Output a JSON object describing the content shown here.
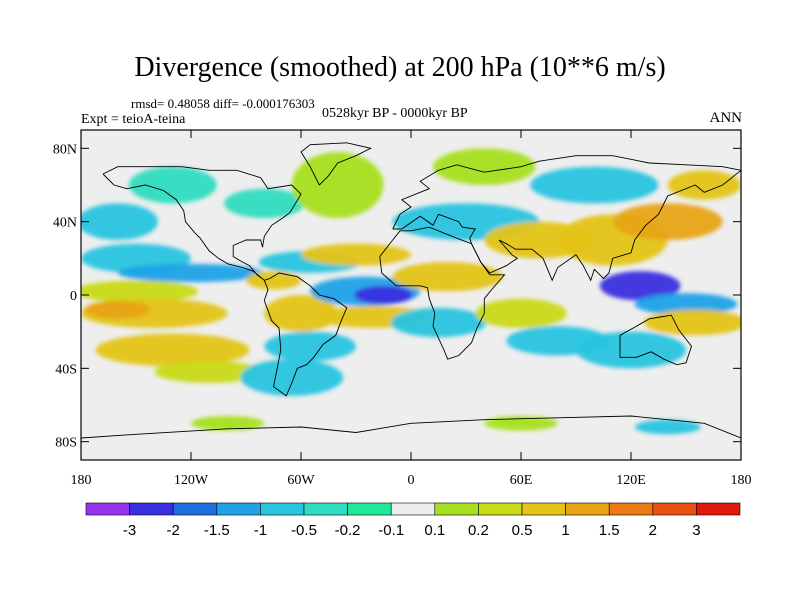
{
  "chart_data": {
    "type": "heatmap",
    "title": "Divergence (smoothed) at 200 hPa (10**6 m/s)",
    "stats_text": "rmsd= 0.48058 diff= -0.000176303",
    "expt_text": "Expt = teioA-teina",
    "period_text": "0528kyr BP - 0000kyr BP",
    "season_text": "ANN",
    "x_ticks": [
      {
        "value": -180,
        "label": "180"
      },
      {
        "value": -120,
        "label": "120W"
      },
      {
        "value": -60,
        "label": "60W"
      },
      {
        "value": 0,
        "label": "0"
      },
      {
        "value": 60,
        "label": "60E"
      },
      {
        "value": 120,
        "label": "120E"
      },
      {
        "value": 180,
        "label": "180"
      }
    ],
    "y_ticks": [
      {
        "value": 80,
        "label": "80N"
      },
      {
        "value": 40,
        "label": "40N"
      },
      {
        "value": 0,
        "label": "0"
      },
      {
        "value": -40,
        "label": "40S"
      },
      {
        "value": -80,
        "label": "80S"
      }
    ],
    "xlim": [
      -180,
      180
    ],
    "ylim": [
      -90,
      90
    ],
    "colorbar": {
      "colors": [
        "#9a33f0",
        "#3a2fe0",
        "#1c6fe0",
        "#1ea2e8",
        "#28c4e0",
        "#2fdcc0",
        "#20e898",
        "#eeeeee",
        "#a6e020",
        "#c8da18",
        "#e4c418",
        "#e8a414",
        "#ec7a10",
        "#e85010",
        "#e01808"
      ],
      "labels": [
        "-3",
        "-2",
        "-1.5",
        "-1",
        "-0.5",
        "-0.2",
        "-0.1",
        "0.1",
        "0.2",
        "0.5",
        "1",
        "1.5",
        "2",
        "3"
      ]
    },
    "blobs": [
      {
        "lon": -150,
        "lat": 2,
        "rx": 34,
        "ry": 6,
        "level": 9
      },
      {
        "lon": -140,
        "lat": -10,
        "rx": 40,
        "ry": 8,
        "level": 10
      },
      {
        "lon": -160,
        "lat": -8,
        "rx": 18,
        "ry": 5,
        "level": 11
      },
      {
        "lon": -130,
        "lat": -30,
        "rx": 42,
        "ry": 9,
        "level": 10
      },
      {
        "lon": -110,
        "lat": -42,
        "rx": 30,
        "ry": 6,
        "level": 9
      },
      {
        "lon": -150,
        "lat": 20,
        "rx": 30,
        "ry": 8,
        "level": 4
      },
      {
        "lon": -120,
        "lat": 12,
        "rx": 40,
        "ry": 5,
        "level": 3
      },
      {
        "lon": -160,
        "lat": 40,
        "rx": 22,
        "ry": 10,
        "level": 4
      },
      {
        "lon": -130,
        "lat": 60,
        "rx": 24,
        "ry": 10,
        "level": 5
      },
      {
        "lon": -80,
        "lat": 50,
        "rx": 22,
        "ry": 8,
        "level": 5
      },
      {
        "lon": -40,
        "lat": 60,
        "rx": 25,
        "ry": 18,
        "level": 8
      },
      {
        "lon": -55,
        "lat": 18,
        "rx": 28,
        "ry": 6,
        "level": 4
      },
      {
        "lon": -75,
        "lat": 8,
        "rx": 15,
        "ry": 5,
        "level": 10
      },
      {
        "lon": -60,
        "lat": -10,
        "rx": 20,
        "ry": 10,
        "level": 10
      },
      {
        "lon": -55,
        "lat": -28,
        "rx": 25,
        "ry": 8,
        "level": 4
      },
      {
        "lon": -65,
        "lat": -45,
        "rx": 28,
        "ry": 10,
        "level": 4
      },
      {
        "lon": -25,
        "lat": 2,
        "rx": 30,
        "ry": 8,
        "level": 3
      },
      {
        "lon": -15,
        "lat": 0,
        "rx": 16,
        "ry": 5,
        "level": 1
      },
      {
        "lon": -20,
        "lat": -12,
        "rx": 32,
        "ry": 6,
        "level": 10
      },
      {
        "lon": -30,
        "lat": 22,
        "rx": 30,
        "ry": 6,
        "level": 10
      },
      {
        "lon": 20,
        "lat": 10,
        "rx": 30,
        "ry": 8,
        "level": 10
      },
      {
        "lon": 15,
        "lat": -15,
        "rx": 26,
        "ry": 8,
        "level": 4
      },
      {
        "lon": 30,
        "lat": 40,
        "rx": 40,
        "ry": 10,
        "level": 4
      },
      {
        "lon": 70,
        "lat": 30,
        "rx": 30,
        "ry": 10,
        "level": 10
      },
      {
        "lon": 60,
        "lat": -10,
        "rx": 25,
        "ry": 8,
        "level": 9
      },
      {
        "lon": 80,
        "lat": -25,
        "rx": 28,
        "ry": 8,
        "level": 4
      },
      {
        "lon": 110,
        "lat": 30,
        "rx": 30,
        "ry": 14,
        "level": 10
      },
      {
        "lon": 140,
        "lat": 40,
        "rx": 30,
        "ry": 10,
        "level": 11
      },
      {
        "lon": 125,
        "lat": 5,
        "rx": 22,
        "ry": 8,
        "level": 1
      },
      {
        "lon": 150,
        "lat": -5,
        "rx": 28,
        "ry": 6,
        "level": 3
      },
      {
        "lon": 155,
        "lat": -15,
        "rx": 28,
        "ry": 7,
        "level": 10
      },
      {
        "lon": 120,
        "lat": -30,
        "rx": 30,
        "ry": 10,
        "level": 4
      },
      {
        "lon": 160,
        "lat": 60,
        "rx": 20,
        "ry": 8,
        "level": 10
      },
      {
        "lon": 100,
        "lat": 60,
        "rx": 35,
        "ry": 10,
        "level": 4
      },
      {
        "lon": 40,
        "lat": 70,
        "rx": 28,
        "ry": 10,
        "level": 8
      },
      {
        "lon": -100,
        "lat": -70,
        "rx": 20,
        "ry": 4,
        "level": 8
      },
      {
        "lon": 60,
        "lat": -70,
        "rx": 20,
        "ry": 4,
        "level": 8
      },
      {
        "lon": 140,
        "lat": -72,
        "rx": 18,
        "ry": 4,
        "level": 4
      }
    ],
    "coastlines": [
      [
        [
          -168,
          66
        ],
        [
          -160,
          70
        ],
        [
          -140,
          70
        ],
        [
          -125,
          70
        ],
        [
          -110,
          68
        ],
        [
          -95,
          68
        ],
        [
          -82,
          64
        ],
        [
          -78,
          58
        ],
        [
          -65,
          60
        ],
        [
          -60,
          55
        ],
        [
          -66,
          45
        ],
        [
          -70,
          42
        ],
        [
          -76,
          38
        ],
        [
          -80,
          32
        ],
        [
          -81,
          26
        ],
        [
          -82,
          30
        ],
        [
          -90,
          30
        ],
        [
          -97,
          27
        ],
        [
          -97,
          21
        ],
        [
          -92,
          18
        ],
        [
          -88,
          16
        ],
        [
          -84,
          11
        ],
        [
          -80,
          8
        ],
        [
          -86,
          13
        ],
        [
          -92,
          15
        ],
        [
          -100,
          17
        ],
        [
          -105,
          20
        ],
        [
          -110,
          24
        ],
        [
          -115,
          31
        ],
        [
          -118,
          34
        ],
        [
          -123,
          40
        ],
        [
          -124,
          46
        ],
        [
          -128,
          52
        ],
        [
          -135,
          57
        ],
        [
          -145,
          60
        ],
        [
          -155,
          58
        ],
        [
          -162,
          60
        ],
        [
          -165,
          63
        ],
        [
          -168,
          66
        ]
      ],
      [
        [
          -80,
          8
        ],
        [
          -78,
          3
        ],
        [
          -80,
          -3
        ],
        [
          -76,
          -14
        ],
        [
          -72,
          -18
        ],
        [
          -71,
          -30
        ],
        [
          -73,
          -40
        ],
        [
          -75,
          -50
        ],
        [
          -68,
          -55
        ],
        [
          -65,
          -48
        ],
        [
          -62,
          -40
        ],
        [
          -57,
          -38
        ],
        [
          -53,
          -34
        ],
        [
          -48,
          -27
        ],
        [
          -41,
          -22
        ],
        [
          -38,
          -14
        ],
        [
          -35,
          -7
        ],
        [
          -42,
          -2
        ],
        [
          -50,
          0
        ],
        [
          -55,
          5
        ],
        [
          -62,
          10
        ],
        [
          -72,
          12
        ],
        [
          -77,
          9
        ],
        [
          -80,
          8
        ]
      ],
      [
        [
          -50,
          60
        ],
        [
          -45,
          65
        ],
        [
          -40,
          72
        ],
        [
          -30,
          76
        ],
        [
          -22,
          80
        ],
        [
          -35,
          83
        ],
        [
          -55,
          82
        ],
        [
          -60,
          78
        ],
        [
          -55,
          70
        ],
        [
          -50,
          60
        ]
      ],
      [
        [
          -10,
          36
        ],
        [
          -6,
          44
        ],
        [
          0,
          48
        ],
        [
          -5,
          52
        ],
        [
          5,
          56
        ],
        [
          10,
          58
        ],
        [
          5,
          62
        ],
        [
          15,
          68
        ],
        [
          25,
          71
        ],
        [
          40,
          67
        ],
        [
          60,
          70
        ],
        [
          70,
          73
        ],
        [
          90,
          76
        ],
        [
          110,
          76
        ],
        [
          130,
          72
        ],
        [
          150,
          71
        ],
        [
          170,
          70
        ],
        [
          180,
          68
        ],
        [
          170,
          60
        ],
        [
          160,
          56
        ],
        [
          155,
          60
        ],
        [
          140,
          54
        ],
        [
          135,
          44
        ],
        [
          128,
          38
        ],
        [
          122,
          30
        ],
        [
          120,
          23
        ],
        [
          110,
          20
        ],
        [
          108,
          12
        ],
        [
          105,
          9
        ],
        [
          100,
          14
        ],
        [
          98,
          8
        ],
        [
          94,
          16
        ],
        [
          90,
          22
        ],
        [
          80,
          15
        ],
        [
          77,
          8
        ],
        [
          72,
          20
        ],
        [
          66,
          25
        ],
        [
          57,
          25
        ],
        [
          52,
          28
        ],
        [
          48,
          30
        ],
        [
          55,
          22
        ],
        [
          58,
          20
        ],
        [
          52,
          16
        ],
        [
          43,
          12
        ],
        [
          38,
          18
        ],
        [
          33,
          28
        ],
        [
          32,
          31
        ],
        [
          35,
          36
        ],
        [
          28,
          37
        ],
        [
          26,
          40
        ],
        [
          15,
          44
        ],
        [
          12,
          38
        ],
        [
          5,
          43
        ],
        [
          -5,
          36
        ],
        [
          -10,
          36
        ]
      ],
      [
        [
          -17,
          21
        ],
        [
          -16,
          12
        ],
        [
          -8,
          5
        ],
        [
          5,
          5
        ],
        [
          9,
          4
        ],
        [
          10,
          -2
        ],
        [
          13,
          -10
        ],
        [
          12,
          -17
        ],
        [
          18,
          -30
        ],
        [
          20,
          -35
        ],
        [
          26,
          -33
        ],
        [
          33,
          -26
        ],
        [
          36,
          -18
        ],
        [
          40,
          -10
        ],
        [
          40,
          -2
        ],
        [
          44,
          3
        ],
        [
          51,
          11
        ],
        [
          43,
          11
        ],
        [
          38,
          18
        ],
        [
          33,
          28
        ],
        [
          25,
          31
        ],
        [
          10,
          37
        ],
        [
          0,
          35
        ],
        [
          -6,
          35
        ],
        [
          -10,
          30
        ],
        [
          -17,
          21
        ]
      ],
      [
        [
          114,
          -22
        ],
        [
          114,
          -34
        ],
        [
          123,
          -34
        ],
        [
          131,
          -31
        ],
        [
          138,
          -35
        ],
        [
          145,
          -38
        ],
        [
          150,
          -37
        ],
        [
          153,
          -28
        ],
        [
          146,
          -19
        ],
        [
          142,
          -11
        ],
        [
          136,
          -12
        ],
        [
          130,
          -13
        ],
        [
          123,
          -17
        ],
        [
          114,
          -22
        ]
      ],
      [
        [
          -180,
          -78
        ],
        [
          -150,
          -76
        ],
        [
          -100,
          -73
        ],
        [
          -60,
          -72
        ],
        [
          -30,
          -75
        ],
        [
          0,
          -70
        ],
        [
          40,
          -68
        ],
        [
          80,
          -67
        ],
        [
          120,
          -66
        ],
        [
          160,
          -70
        ],
        [
          180,
          -78
        ]
      ]
    ]
  }
}
